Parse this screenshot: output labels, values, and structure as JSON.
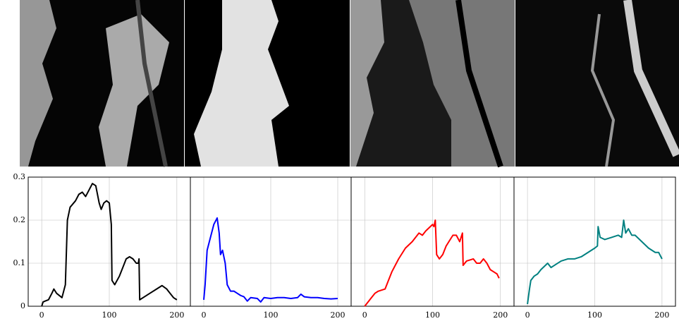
{
  "chart_data": [
    {
      "type": "line",
      "xlim": [
        -20,
        220
      ],
      "ylim": [
        0,
        0.3
      ],
      "xticks": [
        0,
        100,
        200
      ],
      "yticks": [
        0,
        0.1,
        0.2,
        0.3
      ],
      "grid": true,
      "series": [
        {
          "color": "#000000",
          "x": [
            0,
            2,
            5,
            10,
            15,
            18,
            22,
            30,
            35,
            38,
            42,
            50,
            55,
            60,
            65,
            70,
            75,
            80,
            85,
            88,
            92,
            96,
            100,
            103,
            104,
            108,
            115,
            120,
            125,
            130,
            135,
            140,
            143,
            144,
            145,
            150,
            160,
            170,
            178,
            185,
            190,
            195,
            200
          ],
          "values": [
            0,
            0.01,
            0.012,
            0.015,
            0.03,
            0.04,
            0.03,
            0.02,
            0.05,
            0.2,
            0.23,
            0.245,
            0.26,
            0.265,
            0.255,
            0.27,
            0.285,
            0.28,
            0.24,
            0.225,
            0.24,
            0.245,
            0.24,
            0.19,
            0.06,
            0.05,
            0.07,
            0.09,
            0.11,
            0.115,
            0.11,
            0.1,
            0.1,
            0.11,
            0.015,
            0.02,
            0.03,
            0.04,
            0.048,
            0.04,
            0.03,
            0.02,
            0.015
          ]
        }
      ]
    },
    {
      "type": "line",
      "xlim": [
        -20,
        220
      ],
      "ylim": [
        0,
        0.3
      ],
      "xticks": [
        0,
        100,
        200
      ],
      "yticks": [
        0,
        0.1,
        0.2,
        0.3
      ],
      "grid": true,
      "series": [
        {
          "color": "#0000ff",
          "x": [
            0,
            2,
            5,
            10,
            15,
            20,
            23,
            25,
            28,
            32,
            35,
            40,
            45,
            50,
            55,
            60,
            65,
            70,
            80,
            85,
            90,
            100,
            110,
            120,
            130,
            140,
            145,
            150,
            160,
            170,
            180,
            190,
            200
          ],
          "values": [
            0.015,
            0.05,
            0.13,
            0.16,
            0.19,
            0.205,
            0.17,
            0.12,
            0.13,
            0.1,
            0.05,
            0.035,
            0.035,
            0.03,
            0.025,
            0.022,
            0.012,
            0.02,
            0.018,
            0.01,
            0.02,
            0.018,
            0.02,
            0.02,
            0.018,
            0.02,
            0.028,
            0.022,
            0.02,
            0.02,
            0.018,
            0.017,
            0.018
          ]
        }
      ]
    },
    {
      "type": "line",
      "xlim": [
        -20,
        220
      ],
      "ylim": [
        0,
        0.3
      ],
      "xticks": [
        0,
        100,
        200
      ],
      "yticks": [
        0,
        0.1,
        0.2,
        0.3
      ],
      "grid": true,
      "series": [
        {
          "color": "#ff0000",
          "x": [
            0,
            5,
            10,
            15,
            20,
            30,
            35,
            40,
            50,
            60,
            70,
            80,
            85,
            90,
            100,
            102,
            104,
            106,
            110,
            115,
            120,
            130,
            135,
            140,
            144,
            145,
            150,
            160,
            165,
            170,
            175,
            180,
            185,
            190,
            195,
            198
          ],
          "values": [
            0,
            0.01,
            0.02,
            0.03,
            0.035,
            0.04,
            0.06,
            0.08,
            0.11,
            0.135,
            0.15,
            0.17,
            0.165,
            0.175,
            0.19,
            0.185,
            0.2,
            0.12,
            0.11,
            0.12,
            0.14,
            0.165,
            0.165,
            0.15,
            0.17,
            0.095,
            0.105,
            0.11,
            0.1,
            0.1,
            0.11,
            0.1,
            0.085,
            0.08,
            0.075,
            0.065
          ]
        }
      ]
    },
    {
      "type": "line",
      "xlim": [
        -20,
        220
      ],
      "ylim": [
        0,
        0.3
      ],
      "xticks": [
        0,
        100,
        200
      ],
      "yticks": [
        0,
        0.1,
        0.2,
        0.3
      ],
      "grid": true,
      "series": [
        {
          "color": "#008080",
          "x": [
            0,
            3,
            5,
            10,
            15,
            20,
            30,
            35,
            40,
            50,
            60,
            70,
            80,
            90,
            100,
            104,
            105,
            108,
            115,
            125,
            135,
            140,
            143,
            146,
            150,
            155,
            160,
            170,
            180,
            190,
            195,
            200
          ],
          "values": [
            0.005,
            0.04,
            0.06,
            0.07,
            0.075,
            0.085,
            0.1,
            0.09,
            0.095,
            0.105,
            0.11,
            0.11,
            0.115,
            0.125,
            0.135,
            0.14,
            0.185,
            0.16,
            0.155,
            0.16,
            0.165,
            0.16,
            0.2,
            0.17,
            0.18,
            0.165,
            0.165,
            0.15,
            0.135,
            0.125,
            0.125,
            0.11
          ]
        }
      ]
    }
  ]
}
